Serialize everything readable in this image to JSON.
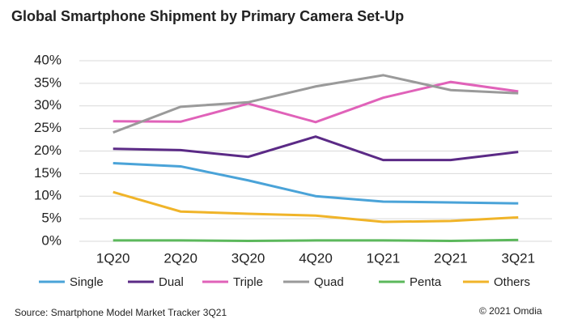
{
  "chart_data": {
    "type": "line",
    "title": "Global Smartphone Shipment by  Primary Camera Set-Up",
    "categories": [
      "1Q20",
      "2Q20",
      "3Q20",
      "4Q20",
      "1Q21",
      "2Q21",
      "3Q21"
    ],
    "series": [
      {
        "name": "Single",
        "color": "#4aa3d8",
        "values": [
          17.3,
          16.6,
          13.5,
          10,
          8.8,
          8.6,
          8.4
        ]
      },
      {
        "name": "Dual",
        "color": "#5b2a86",
        "values": [
          20.5,
          20.2,
          18.7,
          23.2,
          18,
          18,
          19.8
        ]
      },
      {
        "name": "Triple",
        "color": "#e062b9",
        "values": [
          26.6,
          26.5,
          30.5,
          26.4,
          31.8,
          35.3,
          33.2
        ]
      },
      {
        "name": "Quad",
        "color": "#9a9a9a",
        "values": [
          24.1,
          29.8,
          30.8,
          34.3,
          36.8,
          33.5,
          32.8
        ]
      },
      {
        "name": "Penta",
        "color": "#5cb85c",
        "values": [
          0.2,
          0.2,
          0.1,
          0.2,
          0.2,
          0.1,
          0.3
        ]
      },
      {
        "name": "Others",
        "color": "#f0b429",
        "values": [
          10.9,
          6.6,
          6.1,
          5.7,
          4.3,
          4.5,
          5.3
        ]
      }
    ],
    "ylim": [
      0,
      40
    ],
    "yticks": [
      {
        "value": 0,
        "label": "0%"
      },
      {
        "value": 5,
        "label": "5%"
      },
      {
        "value": 10,
        "label": "10%"
      },
      {
        "value": 15,
        "label": "15%"
      },
      {
        "value": 20,
        "label": "20%"
      },
      {
        "value": 25,
        "label": "25%"
      },
      {
        "value": 30,
        "label": "30%"
      },
      {
        "value": 35,
        "label": "35%"
      },
      {
        "value": 40,
        "label": "40%"
      }
    ],
    "grid": true,
    "source": "Source: Smartphone Model Market Tracker 3Q21",
    "copyright": "© 2021 Omdia"
  }
}
